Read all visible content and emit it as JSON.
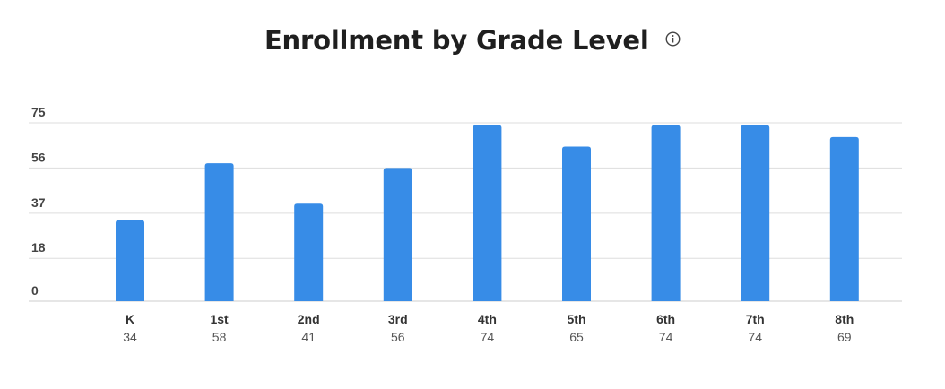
{
  "chart_data": {
    "type": "bar",
    "title": "Enrollment by Grade Level",
    "xlabel": "",
    "ylabel": "",
    "categories": [
      "K",
      "1st",
      "2nd",
      "3rd",
      "4th",
      "5th",
      "6th",
      "7th",
      "8th"
    ],
    "values": [
      34,
      58,
      41,
      56,
      74,
      65,
      74,
      74,
      69
    ],
    "value_labels": [
      "34",
      "58",
      "41",
      "56",
      "74",
      "65",
      "74",
      "74",
      "69"
    ],
    "yticks": [
      0,
      18,
      37,
      56,
      75
    ],
    "ylim": [
      0,
      75
    ],
    "grid": true,
    "bar_color": "#378ce7",
    "gridline_color": "#dddddd"
  },
  "icons": {
    "title_info": "info-icon"
  }
}
